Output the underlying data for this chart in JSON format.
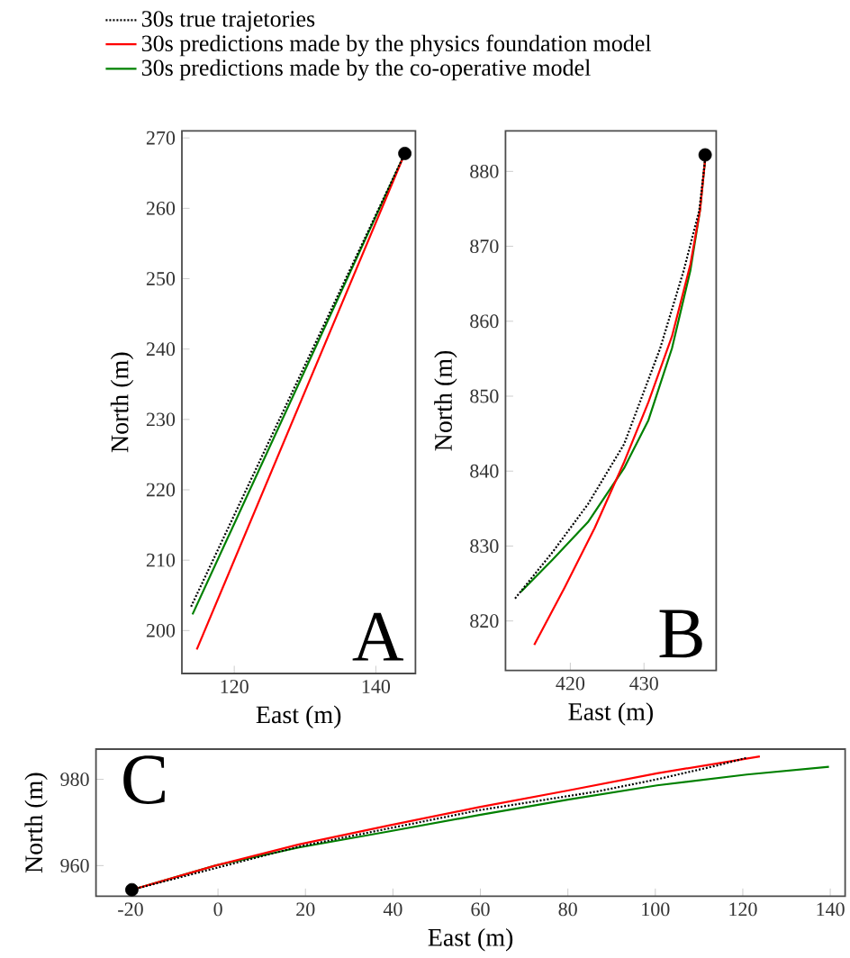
{
  "chart_data": [
    {
      "type": "line",
      "xlabel": "East (m)",
      "ylabel": "North (m)",
      "annotations": [
        "A"
      ],
      "xlim": [
        112.6,
        145.6
      ],
      "ylim": [
        193.9,
        271
      ],
      "xticks": [
        120,
        140
      ],
      "yticks": [
        200,
        210,
        220,
        230,
        240,
        250,
        260,
        270
      ],
      "legend": "top",
      "series": [
        {
          "name": "30s true trajetories",
          "color": "#000000",
          "line_style": "dotted",
          "x": [
            113.9,
            144.1
          ],
          "values": [
            203.4,
            267.8
          ]
        },
        {
          "name": "30s predictions made by the physics foundation model",
          "color": "#ff0000",
          "line_style": "solid",
          "x": [
            114.7,
            144.1
          ],
          "values": [
            197.3,
            267.8
          ]
        },
        {
          "name": "30s predictions made by the co-operative model",
          "color": "#008000",
          "line_style": "solid",
          "x": [
            114.1,
            144.1
          ],
          "values": [
            202.3,
            267.8
          ]
        },
        {
          "type": "scatter",
          "color": "#000000",
          "marker": "circle",
          "x": [
            144.1
          ],
          "values": [
            267.8
          ]
        }
      ]
    },
    {
      "type": "line",
      "xlabel": "East (m)",
      "ylabel": "North (m)",
      "annotations": [
        "B"
      ],
      "xlim": [
        411.2,
        439.8
      ],
      "ylim": [
        813.4,
        885.4
      ],
      "xticks": [
        420,
        430
      ],
      "yticks": [
        820,
        830,
        840,
        850,
        860,
        870,
        880
      ],
      "series": [
        {
          "color": "#000000",
          "line_style": "dotted",
          "x": [
            412.5,
            417.6,
            422.4,
            427.3,
            432.2,
            435.4,
            437.5,
            438.3
          ],
          "values": [
            823.0,
            829.2,
            835.6,
            843.6,
            856.4,
            866.8,
            874.8,
            881.6
          ]
        },
        {
          "color": "#ff0000",
          "line_style": "solid",
          "x": [
            415.1,
            419.2,
            423.3,
            427.3,
            430.6,
            433.8,
            436.3,
            437.6,
            438.3
          ],
          "values": [
            816.8,
            824.4,
            832.4,
            841.2,
            849.2,
            858.0,
            867.6,
            874.8,
            881.6
          ]
        },
        {
          "color": "#008000",
          "line_style": "solid",
          "x": [
            413.3,
            417.6,
            422.4,
            427.3,
            430.6,
            433.8,
            436.3,
            437.6,
            438.3
          ],
          "values": [
            823.9,
            828.2,
            833.2,
            840.4,
            846.8,
            856.4,
            866.8,
            874.8,
            881.6
          ]
        },
        {
          "type": "scatter",
          "color": "#000000",
          "marker": "circle",
          "x": [
            438.3
          ],
          "values": [
            882.2
          ]
        }
      ]
    },
    {
      "type": "line",
      "xlabel": "East (m)",
      "ylabel": "North (m)",
      "annotations": [
        "C"
      ],
      "xlim": [
        -27.9,
        143.4
      ],
      "ylim": [
        952.9,
        987
      ],
      "xticks": [
        -20,
        0,
        20,
        40,
        60,
        80,
        100,
        120,
        140
      ],
      "yticks": [
        960,
        980
      ],
      "series": [
        {
          "color": "#000000",
          "line_style": "dotted",
          "x": [
            -19.7,
            18.5,
            59.5,
            86.8,
            100.4,
            114.1,
            120.9
          ],
          "values": [
            954.4,
            964.4,
            972.8,
            977.2,
            980.0,
            983.2,
            985.0
          ]
        },
        {
          "color": "#ff0000",
          "line_style": "solid",
          "x": [
            -19.7,
            -0.6,
            18.5,
            39,
            59.5,
            80,
            100.4,
            123.9
          ],
          "values": [
            954.4,
            960,
            964.9,
            969.3,
            973.5,
            977.4,
            981.4,
            985.3
          ]
        },
        {
          "color": "#008000",
          "line_style": "solid",
          "x": [
            -19.7,
            -0.6,
            18.5,
            39,
            59.5,
            80,
            100.4,
            120.9,
            139.7
          ],
          "values": [
            954.4,
            960,
            964.2,
            967.9,
            971.7,
            975.3,
            978.6,
            981.1,
            982.9
          ]
        },
        {
          "type": "scatter",
          "color": "#000000",
          "marker": "circle",
          "x": [
            -19.7
          ],
          "values": [
            954.4
          ]
        }
      ]
    }
  ]
}
